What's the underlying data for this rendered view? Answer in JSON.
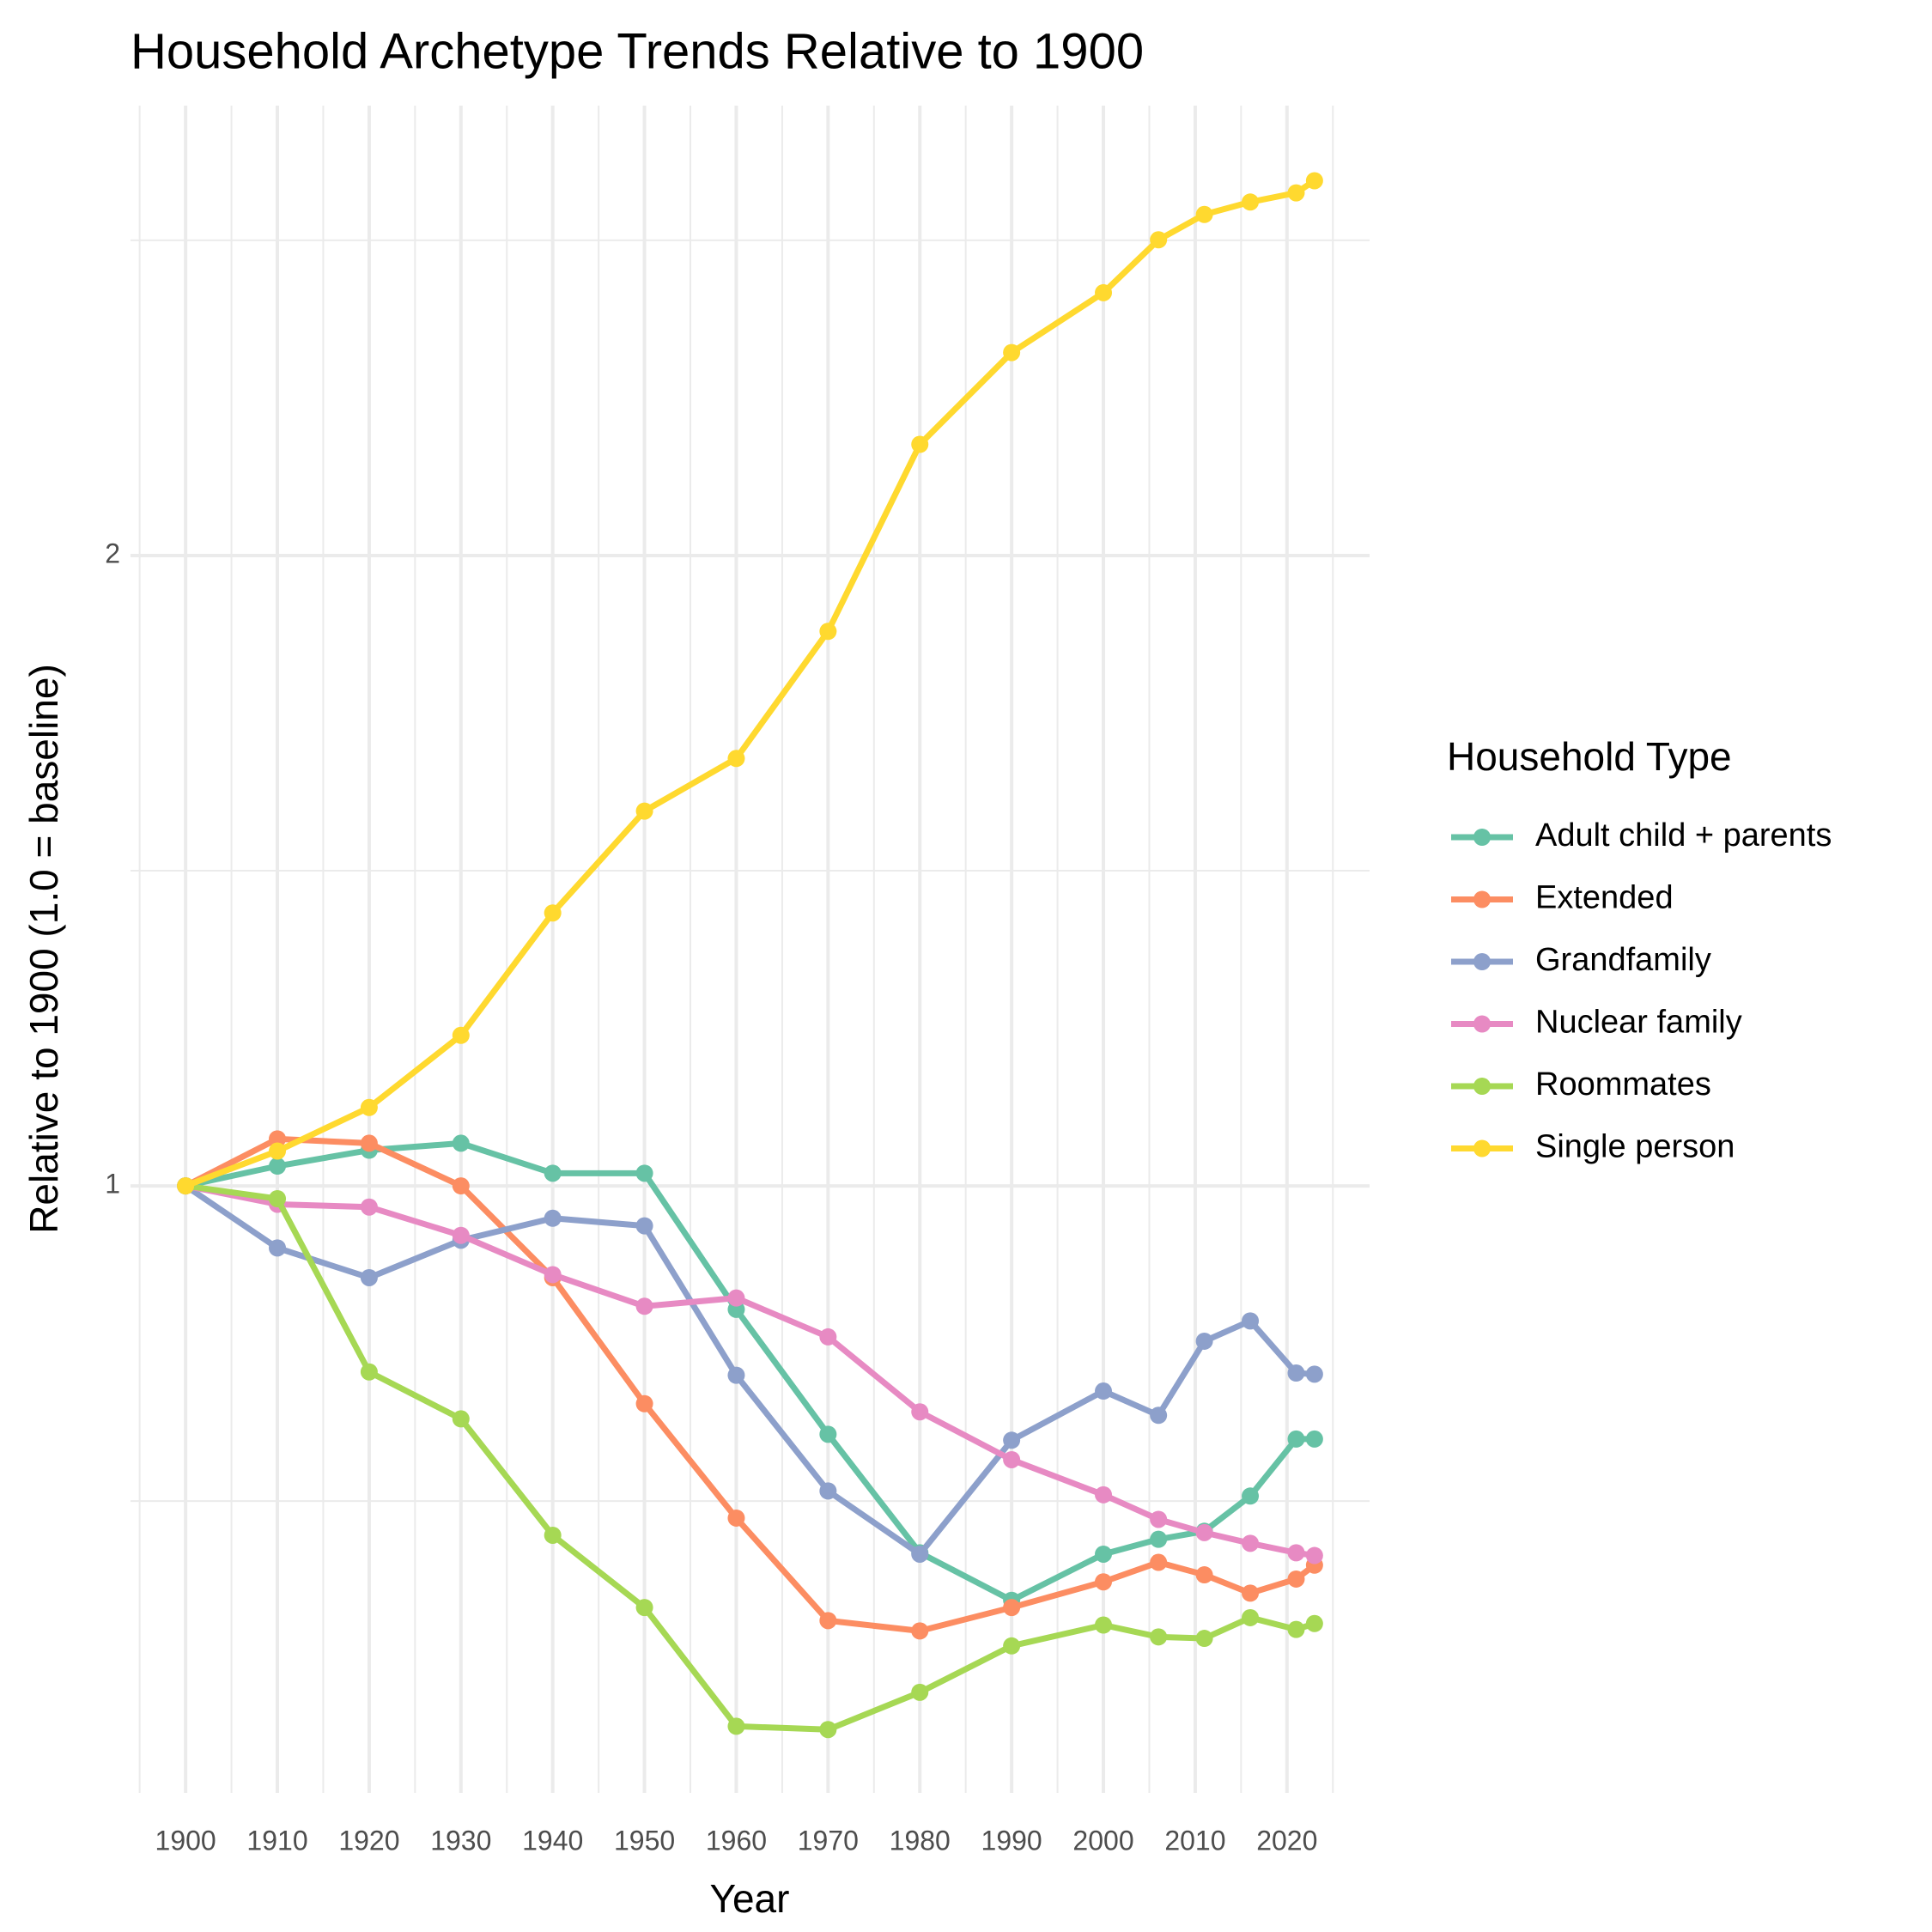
{
  "chart_data": {
    "type": "line",
    "title": "Household Archetype Trends Relative to 1900",
    "x_label": "Year",
    "y_label": "Relative to 1900 (1.0 = baseline)",
    "legend_title": "Household Type",
    "legend_position": "right",
    "y_scale": "log2",
    "grid": true,
    "x": [
      1900,
      1910,
      1920,
      1930,
      1940,
      1950,
      1960,
      1970,
      1980,
      1990,
      2000,
      2006,
      2011,
      2016,
      2021,
      2023
    ],
    "xlim": [
      1894,
      2029
    ],
    "xticks": [
      1900,
      1910,
      1920,
      1930,
      1940,
      1950,
      1960,
      1970,
      1980,
      1990,
      2000,
      2010,
      2020
    ],
    "ylim": [
      0.513,
      3.28
    ],
    "yticks": [
      1,
      2
    ],
    "series": [
      {
        "name": "Adult child + parents",
        "color": "#66c2a5",
        "values": [
          1,
          1.022,
          1.04,
          1.048,
          1.014,
          1.014,
          0.873,
          0.761,
          0.668,
          0.634,
          0.667,
          0.678,
          0.684,
          0.711,
          0.757,
          0.757
        ]
      },
      {
        "name": "Extended",
        "color": "#fc8d62",
        "values": [
          1,
          1.053,
          1.048,
          1.0,
          0.904,
          0.787,
          0.694,
          0.62,
          0.613,
          0.629,
          0.647,
          0.661,
          0.652,
          0.639,
          0.649,
          0.659
        ]
      },
      {
        "name": "Grandfamily",
        "color": "#8da0cb",
        "values": [
          1,
          0.934,
          0.904,
          0.942,
          0.965,
          0.957,
          0.812,
          0.715,
          0.667,
          0.756,
          0.798,
          0.777,
          0.843,
          0.862,
          0.814,
          0.813
        ]
      },
      {
        "name": "Nuclear family",
        "color": "#e78ac3",
        "values": [
          1,
          0.98,
          0.977,
          0.947,
          0.907,
          0.876,
          0.884,
          0.847,
          0.78,
          0.74,
          0.712,
          0.693,
          0.683,
          0.675,
          0.668,
          0.666
        ]
      },
      {
        "name": "Roommates",
        "color": "#a6d854",
        "values": [
          1,
          0.986,
          0.815,
          0.774,
          0.681,
          0.629,
          0.552,
          0.55,
          0.573,
          0.603,
          0.617,
          0.609,
          0.608,
          0.622,
          0.614,
          0.618
        ]
      },
      {
        "name": "Single person",
        "color": "#ffd92f",
        "values": [
          1,
          1.039,
          1.09,
          1.18,
          1.35,
          1.51,
          1.6,
          1.84,
          2.26,
          2.5,
          2.67,
          2.83,
          2.91,
          2.95,
          2.98,
          3.02
        ]
      }
    ]
  }
}
